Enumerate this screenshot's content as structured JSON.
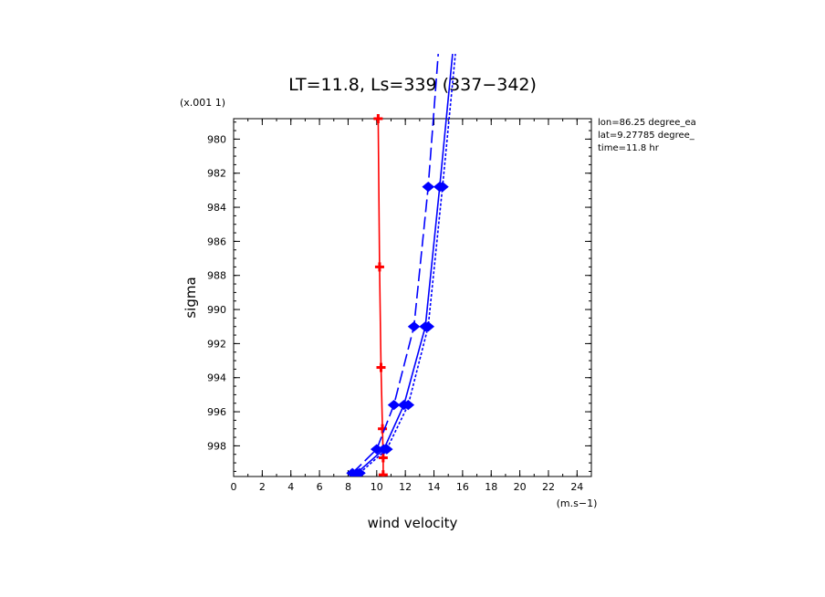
{
  "chart_data": {
    "type": "line",
    "title": "LT=11.8, Ls=339 (337−342)",
    "xlabel": "wind velocity",
    "ylabel": "sigma",
    "x_unit": "(m.s−1)",
    "y_unit": "(x.001 1)",
    "xlim": [
      0,
      25
    ],
    "ylim": [
      999.8,
      978.8
    ],
    "x_ticks": [
      0,
      2,
      4,
      6,
      8,
      10,
      12,
      14,
      16,
      18,
      20,
      22,
      24
    ],
    "y_ticks": [
      980,
      982,
      984,
      986,
      988,
      990,
      992,
      994,
      996,
      998
    ],
    "grid": false,
    "series": [
      {
        "color": "#ff0000",
        "style": "solid",
        "marker": "plus",
        "points": [
          [
            10.1,
            978.8
          ],
          [
            10.2,
            987.5
          ],
          [
            10.3,
            993.4
          ],
          [
            10.4,
            997.0
          ],
          [
            10.45,
            998.7
          ],
          [
            10.45,
            999.7
          ]
        ]
      },
      {
        "color": "#0000ff",
        "style": "solid",
        "marker": "diamond",
        "points": [
          [
            8.6,
            999.6
          ],
          [
            10.5,
            998.2
          ],
          [
            11.9,
            995.6
          ],
          [
            13.4,
            991.0
          ],
          [
            14.4,
            982.8
          ],
          [
            15.3,
            975.0
          ]
        ]
      },
      {
        "color": "#0000ff",
        "style": "dashed",
        "marker": "diamond",
        "points": [
          [
            8.3,
            999.6
          ],
          [
            10.0,
            998.2
          ],
          [
            11.2,
            995.6
          ],
          [
            12.6,
            991.0
          ],
          [
            13.6,
            982.8
          ],
          [
            14.3,
            975.0
          ]
        ]
      },
      {
        "color": "#0000ff",
        "style": "dotted",
        "marker": "diamond",
        "points": [
          [
            8.8,
            999.6
          ],
          [
            10.7,
            998.2
          ],
          [
            12.2,
            995.6
          ],
          [
            13.6,
            991.0
          ],
          [
            14.6,
            982.8
          ],
          [
            15.5,
            975.0
          ]
        ]
      }
    ]
  },
  "info": {
    "lon": "lon=86.25 degree_ea",
    "lat": "lat=9.27785 degree_",
    "time": "time=11.8 hr"
  }
}
